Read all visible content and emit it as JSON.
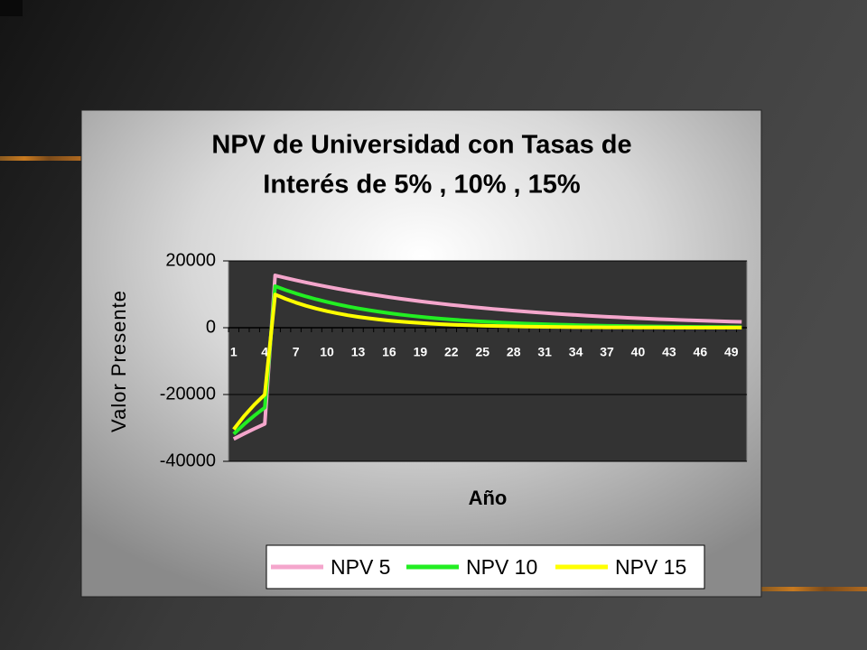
{
  "chart_data": {
    "type": "line",
    "title": [
      "NPV de Universidad con Tasas de",
      "Interés de 5% , 10% , 15%"
    ],
    "x_label": "Año",
    "y_label": "Valor Presente",
    "categories": [
      1,
      null,
      null,
      4,
      null,
      null,
      7,
      null,
      null,
      10,
      null,
      null,
      13,
      null,
      null,
      16,
      null,
      null,
      19,
      null,
      null,
      22,
      null,
      null,
      25,
      null,
      null,
      28,
      null,
      null,
      31,
      null,
      null,
      34,
      null,
      null,
      37,
      null,
      null,
      40,
      null,
      null,
      43,
      null,
      null,
      46,
      null,
      null,
      49,
      null
    ],
    "series": [
      {
        "name": "NPV 5",
        "color": "#f4a6cc",
        "values": [
          -33333,
          -31746,
          -30234,
          -28794,
          15671,
          14924,
          14214,
          13537,
          12892,
          12278,
          11693,
          11137,
          10606,
          10101,
          9620,
          9162,
          8726,
          8310,
          7915,
          7538,
          7179,
          6837,
          6511,
          6201,
          5906,
          5625,
          5357,
          5102,
          4859,
          4628,
          4407,
          4197,
          3997,
          3807,
          3626,
          3453,
          3289,
          3132,
          2983,
          2841,
          2706,
          2577,
          2454,
          2337,
          2226,
          2120,
          2019,
          1923,
          1831,
          1744
        ]
      },
      {
        "name": "NPV 10",
        "color": "#22ee22",
        "values": [
          -31818,
          -28926,
          -26296,
          -23905,
          12418,
          11289,
          10263,
          9330,
          8482,
          7711,
          7010,
          6373,
          5793,
          5267,
          4788,
          4353,
          3957,
          3597,
          3270,
          2973,
          2703,
          2457,
          2234,
          2031,
          1846,
          1678,
          1526,
          1387,
          1261,
          1146,
          1042,
          947,
          861,
          783,
          712,
          647,
          588,
          535,
          486,
          442,
          402,
          365,
          332,
          302,
          274,
          249,
          227,
          206,
          187,
          170
        ]
      },
      {
        "name": "NPV 15",
        "color": "#ffff00",
        "values": [
          -30435,
          -26465,
          -23013,
          -20011,
          9943,
          8647,
          7519,
          6538,
          5685,
          4944,
          4299,
          3738,
          3251,
          2827,
          2458,
          2137,
          1859,
          1616,
          1405,
          1222,
          1063,
          924,
          803,
          699,
          608,
          528,
          459,
          399,
          347,
          302,
          263,
          228,
          199,
          173,
          150,
          131,
          114,
          99,
          86,
          75,
          65,
          56,
          49,
          43,
          37,
          32,
          28,
          24,
          21,
          19
        ]
      }
    ],
    "ylim": [
      -40000,
      20000
    ],
    "yticks": [
      -40000,
      -20000,
      0,
      20000
    ],
    "grid": true
  }
}
